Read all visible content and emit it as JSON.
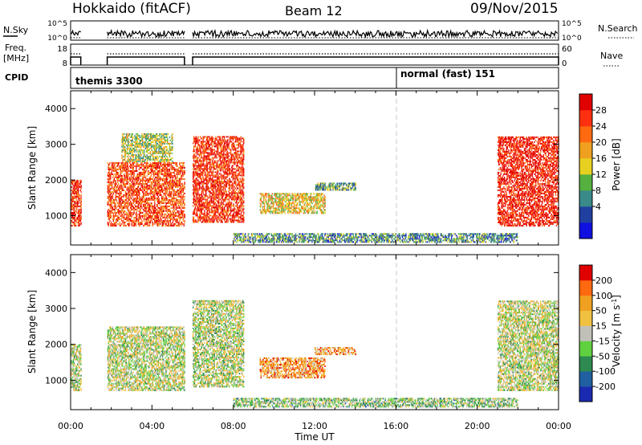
{
  "header": {
    "station": "Hokkaido (fitACF)",
    "beam": "Beam 12",
    "date": "09/Nov/2015"
  },
  "strips": {
    "nsky_label": "N.Sky",
    "nsearch_label": "N.Search",
    "nsky_ticks": [
      "10^5",
      "10^0"
    ],
    "nsearch_ticks": [
      "10^5",
      "10^0"
    ],
    "freq_label_1": "Freq.",
    "freq_label_2": "[MHz]",
    "freq_ticks": [
      "18",
      "8"
    ],
    "nave_label": "Nave",
    "nave_ticks": [
      "60",
      "0"
    ],
    "cpid_label": "CPID",
    "cpid_modes": [
      {
        "label": "themis 3300",
        "start_hour": 0
      },
      {
        "label": "normal (fast) 151",
        "start_hour": 16
      }
    ]
  },
  "chart_data": [
    {
      "type": "heatmap",
      "name": "power-panel",
      "ylabel": "Slant Range [km]",
      "yticks": [
        1000,
        2000,
        3000,
        4000
      ],
      "ylim": [
        180,
        4500
      ],
      "xlim": [
        0,
        24
      ],
      "colorbar": {
        "label": "Power [dB]",
        "ticks": [
          "28",
          "24",
          "20",
          "16",
          "12",
          "8",
          "4"
        ],
        "colors": [
          "#1010e0",
          "#2040a0",
          "#3a8a8a",
          "#55b040",
          "#e8d020",
          "#f0a020",
          "#ff6a10",
          "#ff3010",
          "#e00000"
        ]
      },
      "regions": [
        {
          "t0": 0.0,
          "t1": 0.5,
          "r0": 700,
          "r1": 2000,
          "level": 0.85
        },
        {
          "t0": 1.8,
          "t1": 5.6,
          "r0": 700,
          "r1": 2500,
          "level": 0.8
        },
        {
          "t0": 2.5,
          "t1": 5.0,
          "r0": 2500,
          "r1": 3300,
          "level": 0.45
        },
        {
          "t0": 6.0,
          "t1": 8.5,
          "r0": 800,
          "r1": 3200,
          "level": 0.85
        },
        {
          "t0": 9.3,
          "t1": 12.5,
          "r0": 1050,
          "r1": 1600,
          "level": 0.55
        },
        {
          "t0": 8.0,
          "t1": 22.0,
          "r0": 240,
          "r1": 500,
          "level": 0.3
        },
        {
          "t0": 12.0,
          "t1": 14.0,
          "r0": 1700,
          "r1": 1900,
          "level": 0.35
        },
        {
          "t0": 21.0,
          "t1": 24.0,
          "r0": 700,
          "r1": 3200,
          "level": 0.9
        }
      ]
    },
    {
      "type": "heatmap",
      "name": "velocity-panel",
      "ylabel": "Slant Range [km]",
      "yticks": [
        1000,
        2000,
        3000,
        4000
      ],
      "ylim": [
        180,
        4500
      ],
      "xlim": [
        0,
        24
      ],
      "xticks": [
        "00:00",
        "04:00",
        "08:00",
        "12:00",
        "16:00",
        "20:00",
        "00:00"
      ],
      "xlabel": "Time UT",
      "colorbar": {
        "label": "Velocity [m s^-1]",
        "ticks": [
          "200",
          "100",
          "50",
          "15",
          "-15",
          "-50",
          "-100",
          "-200"
        ],
        "colors": [
          "#1a2ab0",
          "#2060a0",
          "#2e8a50",
          "#60d040",
          "#c0c0b8",
          "#f0c040",
          "#f0a020",
          "#ff6a10",
          "#e00000"
        ]
      },
      "regions": [
        {
          "t0": 0.0,
          "t1": 0.5,
          "r0": 700,
          "r1": 2000,
          "level": 0.5
        },
        {
          "t0": 1.8,
          "t1": 5.6,
          "r0": 700,
          "r1": 2500,
          "level": 0.5
        },
        {
          "t0": 6.0,
          "t1": 8.5,
          "r0": 800,
          "r1": 3200,
          "level": 0.48
        },
        {
          "t0": 9.3,
          "t1": 12.5,
          "r0": 1050,
          "r1": 1600,
          "level": 0.72
        },
        {
          "t0": 8.0,
          "t1": 22.0,
          "r0": 240,
          "r1": 500,
          "level": 0.42
        },
        {
          "t0": 12.0,
          "t1": 14.0,
          "r0": 1700,
          "r1": 1900,
          "level": 0.72
        },
        {
          "t0": 21.0,
          "t1": 24.0,
          "r0": 700,
          "r1": 3200,
          "level": 0.5
        }
      ]
    }
  ]
}
